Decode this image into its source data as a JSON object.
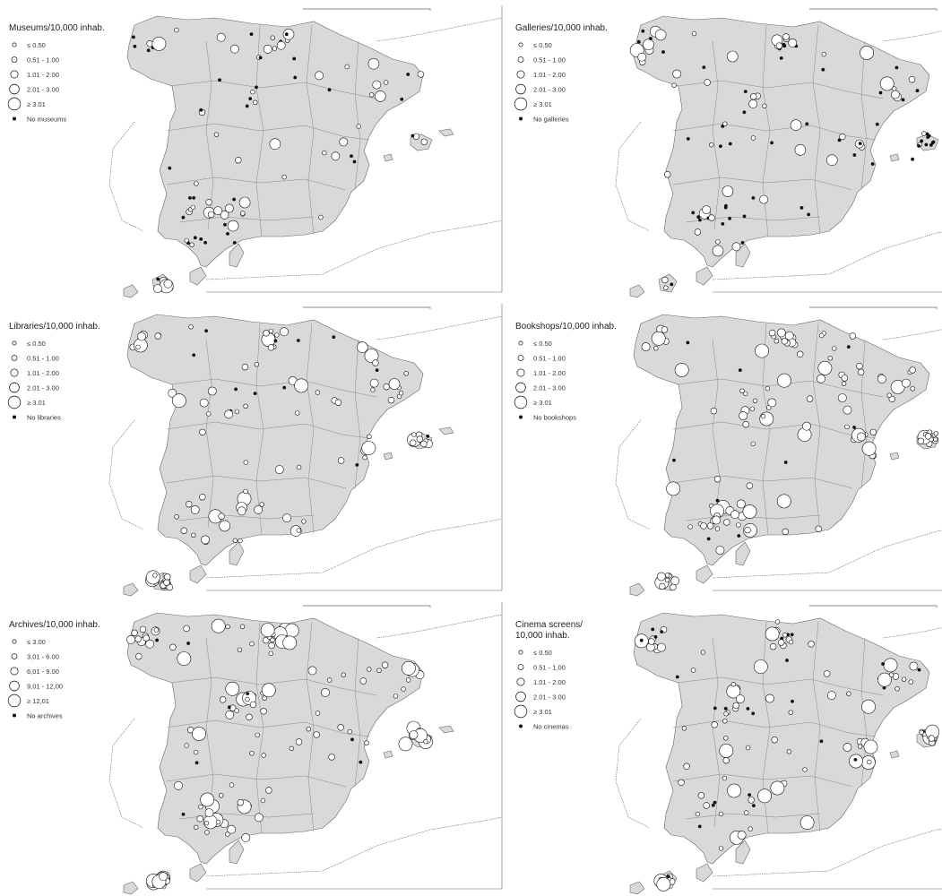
{
  "colors": {
    "land": "#d9d9d9",
    "border": "#888888",
    "coast": "#666666",
    "symbol_fill": "#ffffff",
    "symbol_stroke": "#111111",
    "none_marker": "#111111"
  },
  "panels": [
    {
      "id": "museums",
      "title_lines": [
        "Museums/10,000 inhab."
      ],
      "classes": [
        "≤ 0.50",
        "0.51 - 1.00",
        "1.01 - 2.00",
        "2.01 - 3.00",
        "≥ 3.01"
      ],
      "none_label": "No museums",
      "density": 0.7,
      "none_share": 0.35,
      "large_share": 0.05
    },
    {
      "id": "galleries",
      "title_lines": [
        "Galleries/10,000 inhab."
      ],
      "classes": [
        "≤ 0.50",
        "0.51 - 1.00",
        "1.01 - 2.00",
        "2.01 - 3.00",
        "≥ 3.01"
      ],
      "none_label": "No galleries",
      "density": 0.85,
      "none_share": 0.55,
      "large_share": 0.04
    },
    {
      "id": "libraries",
      "title_lines": [
        "Libraries/10,000 inhab."
      ],
      "classes": [
        "≤ 0.50",
        "0.51 - 1.00",
        "1.01 - 2.00",
        "2.01 - 3.00",
        "≥ 3.01"
      ],
      "none_label": "No libraries",
      "density": 0.85,
      "none_share": 0.1,
      "large_share": 0.12
    },
    {
      "id": "bookshops",
      "title_lines": [
        "Bookshops/10,000 inhab."
      ],
      "classes": [
        "≤ 0.50",
        "0.51 - 1.00",
        "1.01 - 2.00",
        "2.01 - 3.00",
        "≥ 3.01"
      ],
      "none_label": "No bookshops",
      "density": 1.0,
      "none_share": 0.08,
      "large_share": 0.3
    },
    {
      "id": "archives",
      "title_lines": [
        "Archives/10,000 inhab."
      ],
      "classes": [
        "≤ 3.00",
        "3,01 - 6.00",
        "6,01 - 9.00",
        "9,01 - 12,00",
        "≥ 12,01"
      ],
      "none_label": "No archives",
      "density": 0.95,
      "none_share": 0.08,
      "large_share": 0.3
    },
    {
      "id": "cinemas",
      "title_lines": [
        "Cinema screens/",
        "10,000 inhab."
      ],
      "classes": [
        "≤ 0.50",
        "0.51 - 1.00",
        "1.01 - 2.00",
        "2.01 - 3.00",
        "≥ 3.01"
      ],
      "none_label": "No cinemas",
      "density": 0.95,
      "none_share": 0.25,
      "large_share": 0.28
    }
  ]
}
